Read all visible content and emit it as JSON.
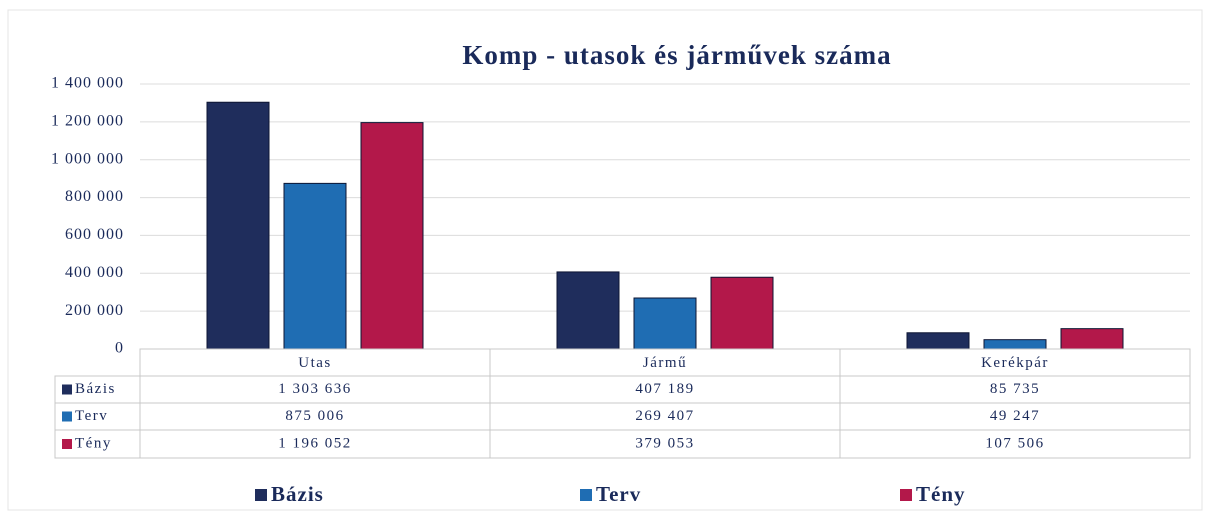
{
  "chart_data": {
    "type": "bar",
    "title": "Komp - utasok és járművek száma",
    "categories": [
      "Utas",
      "Jármű",
      "Kerékpár"
    ],
    "series": [
      {
        "name": "Bázis",
        "color": "#1f2d5c",
        "values": [
          1303636,
          407189,
          85735
        ],
        "value_labels": [
          "1 303 636",
          "407 189",
          "85 735"
        ]
      },
      {
        "name": "Terv",
        "color": "#1f6db3",
        "values": [
          875006,
          269407,
          49247
        ],
        "value_labels": [
          "875 006",
          "269 407",
          "49 247"
        ]
      },
      {
        "name": "Tény",
        "color": "#b3184a",
        "values": [
          1196052,
          379053,
          107506
        ],
        "value_labels": [
          "1 196 052",
          "379 053",
          "107 506"
        ]
      }
    ],
    "ylim": [
      0,
      1400000
    ],
    "yticks": [
      0,
      {
        "value": 200000,
        "label": "200 000"
      },
      {
        "value": 400000,
        "label": "400 000"
      },
      {
        "value": 600000,
        "label": "600 000"
      },
      {
        "value": 800000,
        "label": "800 000"
      },
      {
        "value": 1000000,
        "label": "1 000 000"
      },
      {
        "value": 1200000,
        "label": "1 200 000"
      },
      {
        "value": 1400000,
        "label": "1 400 000"
      }
    ],
    "grid": true
  }
}
